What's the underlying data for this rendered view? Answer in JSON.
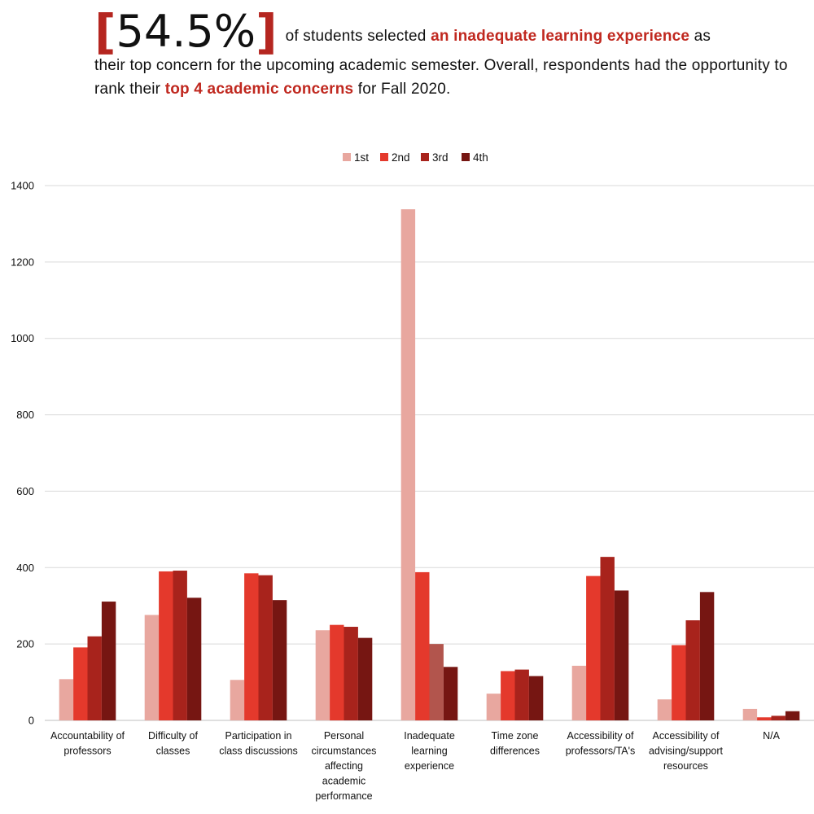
{
  "headline": {
    "stat": "54.5%",
    "bracket_open": "[",
    "bracket_close": "]",
    "text_a": "of students selected ",
    "highlight_a": "an inadequate learning experience",
    "text_b": " as their top concern for the upcoming academic semester. Overall, respondents had the opportunity to rank their ",
    "highlight_b": "top 4 academic concerns",
    "text_c": " for Fall 2020."
  },
  "colors": {
    "1st": "#e8a79f",
    "2nd": "#e4392c",
    "3rd": "#a8231c",
    "4th": "#761612",
    "highlight": "#c0281f",
    "inadequate_3rd": "#b2554d",
    "grid": "#d9d9d9"
  },
  "chart_data": {
    "type": "bar",
    "categories": [
      [
        "Accountability of",
        "professors"
      ],
      [
        "Difficulty of",
        "classes"
      ],
      [
        "Participation in",
        "class discussions"
      ],
      [
        "Personal",
        "circumstances",
        "affecting",
        "academic",
        "performance"
      ],
      [
        "Inadequate",
        "learning",
        "experience"
      ],
      [
        "Time zone",
        "differences"
      ],
      [
        "Accessibility of",
        "professors/TA's"
      ],
      [
        "Accessibility of",
        "advising/support",
        "resources"
      ],
      [
        "N/A"
      ]
    ],
    "series": [
      {
        "name": "1st",
        "values": [
          108,
          276,
          106,
          236,
          1338,
          70,
          143,
          55,
          30
        ]
      },
      {
        "name": "2nd",
        "values": [
          191,
          390,
          385,
          250,
          388,
          129,
          378,
          197,
          8
        ]
      },
      {
        "name": "3rd",
        "values": [
          220,
          392,
          380,
          245,
          200,
          133,
          428,
          262,
          12
        ]
      },
      {
        "name": "4th",
        "values": [
          311,
          321,
          315,
          216,
          140,
          116,
          340,
          336,
          24
        ]
      }
    ],
    "ylim": [
      0,
      1400
    ],
    "yticks": [
      0,
      200,
      400,
      600,
      800,
      1000,
      1200,
      1400
    ],
    "grid": true,
    "legend": "top-center",
    "title": "",
    "xlabel": "",
    "ylabel": ""
  }
}
